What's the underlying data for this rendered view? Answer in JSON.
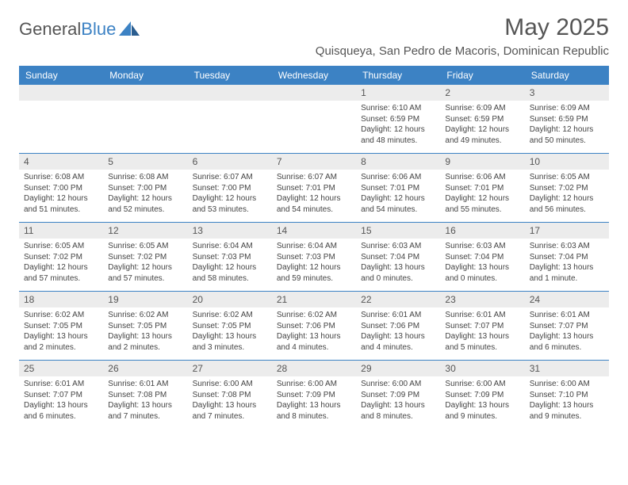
{
  "brand": {
    "part1": "General",
    "part2": "Blue"
  },
  "title": "May 2025",
  "location": "Quisqueya, San Pedro de Macoris, Dominican Republic",
  "colors": {
    "header_bg": "#3c82c4",
    "header_text": "#ffffff",
    "daynum_bg": "#ececec",
    "text": "#444444",
    "rule": "#3c82c4",
    "page_bg": "#ffffff"
  },
  "typography": {
    "title_fontsize": 30,
    "location_fontsize": 15,
    "dayhead_fontsize": 12,
    "daynum_fontsize": 12,
    "entry_fontsize": 10
  },
  "day_headers": [
    "Sunday",
    "Monday",
    "Tuesday",
    "Wednesday",
    "Thursday",
    "Friday",
    "Saturday"
  ],
  "labels": {
    "sunrise": "Sunrise:",
    "sunset": "Sunset:",
    "daylight": "Daylight:"
  },
  "weeks": [
    [
      null,
      null,
      null,
      null,
      {
        "n": "1",
        "sunrise": "6:10 AM",
        "sunset": "6:59 PM",
        "daylight": "12 hours and 48 minutes."
      },
      {
        "n": "2",
        "sunrise": "6:09 AM",
        "sunset": "6:59 PM",
        "daylight": "12 hours and 49 minutes."
      },
      {
        "n": "3",
        "sunrise": "6:09 AM",
        "sunset": "6:59 PM",
        "daylight": "12 hours and 50 minutes."
      }
    ],
    [
      {
        "n": "4",
        "sunrise": "6:08 AM",
        "sunset": "7:00 PM",
        "daylight": "12 hours and 51 minutes."
      },
      {
        "n": "5",
        "sunrise": "6:08 AM",
        "sunset": "7:00 PM",
        "daylight": "12 hours and 52 minutes."
      },
      {
        "n": "6",
        "sunrise": "6:07 AM",
        "sunset": "7:00 PM",
        "daylight": "12 hours and 53 minutes."
      },
      {
        "n": "7",
        "sunrise": "6:07 AM",
        "sunset": "7:01 PM",
        "daylight": "12 hours and 54 minutes."
      },
      {
        "n": "8",
        "sunrise": "6:06 AM",
        "sunset": "7:01 PM",
        "daylight": "12 hours and 54 minutes."
      },
      {
        "n": "9",
        "sunrise": "6:06 AM",
        "sunset": "7:01 PM",
        "daylight": "12 hours and 55 minutes."
      },
      {
        "n": "10",
        "sunrise": "6:05 AM",
        "sunset": "7:02 PM",
        "daylight": "12 hours and 56 minutes."
      }
    ],
    [
      {
        "n": "11",
        "sunrise": "6:05 AM",
        "sunset": "7:02 PM",
        "daylight": "12 hours and 57 minutes."
      },
      {
        "n": "12",
        "sunrise": "6:05 AM",
        "sunset": "7:02 PM",
        "daylight": "12 hours and 57 minutes."
      },
      {
        "n": "13",
        "sunrise": "6:04 AM",
        "sunset": "7:03 PM",
        "daylight": "12 hours and 58 minutes."
      },
      {
        "n": "14",
        "sunrise": "6:04 AM",
        "sunset": "7:03 PM",
        "daylight": "12 hours and 59 minutes."
      },
      {
        "n": "15",
        "sunrise": "6:03 AM",
        "sunset": "7:04 PM",
        "daylight": "13 hours and 0 minutes."
      },
      {
        "n": "16",
        "sunrise": "6:03 AM",
        "sunset": "7:04 PM",
        "daylight": "13 hours and 0 minutes."
      },
      {
        "n": "17",
        "sunrise": "6:03 AM",
        "sunset": "7:04 PM",
        "daylight": "13 hours and 1 minute."
      }
    ],
    [
      {
        "n": "18",
        "sunrise": "6:02 AM",
        "sunset": "7:05 PM",
        "daylight": "13 hours and 2 minutes."
      },
      {
        "n": "19",
        "sunrise": "6:02 AM",
        "sunset": "7:05 PM",
        "daylight": "13 hours and 2 minutes."
      },
      {
        "n": "20",
        "sunrise": "6:02 AM",
        "sunset": "7:05 PM",
        "daylight": "13 hours and 3 minutes."
      },
      {
        "n": "21",
        "sunrise": "6:02 AM",
        "sunset": "7:06 PM",
        "daylight": "13 hours and 4 minutes."
      },
      {
        "n": "22",
        "sunrise": "6:01 AM",
        "sunset": "7:06 PM",
        "daylight": "13 hours and 4 minutes."
      },
      {
        "n": "23",
        "sunrise": "6:01 AM",
        "sunset": "7:07 PM",
        "daylight": "13 hours and 5 minutes."
      },
      {
        "n": "24",
        "sunrise": "6:01 AM",
        "sunset": "7:07 PM",
        "daylight": "13 hours and 6 minutes."
      }
    ],
    [
      {
        "n": "25",
        "sunrise": "6:01 AM",
        "sunset": "7:07 PM",
        "daylight": "13 hours and 6 minutes."
      },
      {
        "n": "26",
        "sunrise": "6:01 AM",
        "sunset": "7:08 PM",
        "daylight": "13 hours and 7 minutes."
      },
      {
        "n": "27",
        "sunrise": "6:00 AM",
        "sunset": "7:08 PM",
        "daylight": "13 hours and 7 minutes."
      },
      {
        "n": "28",
        "sunrise": "6:00 AM",
        "sunset": "7:09 PM",
        "daylight": "13 hours and 8 minutes."
      },
      {
        "n": "29",
        "sunrise": "6:00 AM",
        "sunset": "7:09 PM",
        "daylight": "13 hours and 8 minutes."
      },
      {
        "n": "30",
        "sunrise": "6:00 AM",
        "sunset": "7:09 PM",
        "daylight": "13 hours and 9 minutes."
      },
      {
        "n": "31",
        "sunrise": "6:00 AM",
        "sunset": "7:10 PM",
        "daylight": "13 hours and 9 minutes."
      }
    ]
  ]
}
